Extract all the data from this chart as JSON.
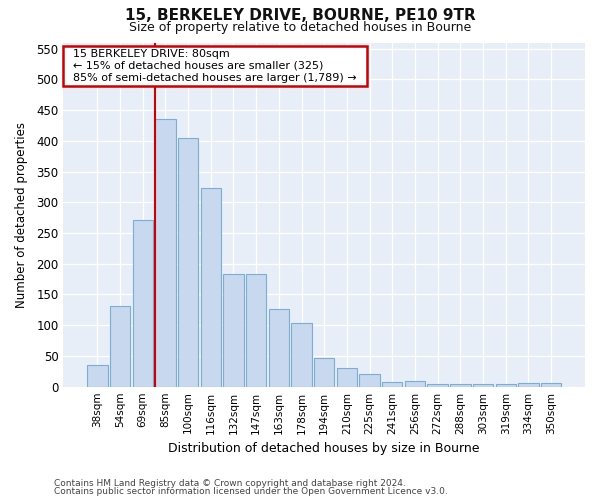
{
  "title1": "15, BERKELEY DRIVE, BOURNE, PE10 9TR",
  "title2": "Size of property relative to detached houses in Bourne",
  "xlabel": "Distribution of detached houses by size in Bourne",
  "ylabel": "Number of detached properties",
  "categories": [
    "38sqm",
    "54sqm",
    "69sqm",
    "85sqm",
    "100sqm",
    "116sqm",
    "132sqm",
    "147sqm",
    "163sqm",
    "178sqm",
    "194sqm",
    "210sqm",
    "225sqm",
    "241sqm",
    "256sqm",
    "272sqm",
    "288sqm",
    "303sqm",
    "319sqm",
    "334sqm",
    "350sqm"
  ],
  "values": [
    35,
    132,
    272,
    435,
    405,
    323,
    184,
    184,
    126,
    104,
    46,
    30,
    20,
    8,
    10,
    4,
    5,
    4,
    4,
    6,
    6
  ],
  "bar_color": "#c8d8ee",
  "bar_edge_color": "#7aaed4",
  "vline_index": 3,
  "vline_color": "#cc0000",
  "ylim": [
    0,
    560
  ],
  "yticks": [
    0,
    50,
    100,
    150,
    200,
    250,
    300,
    350,
    400,
    450,
    500,
    550
  ],
  "annotation_title": "15 BERKELEY DRIVE: 80sqm",
  "annotation_line1": "← 15% of detached houses are smaller (325)",
  "annotation_line2": "85% of semi-detached houses are larger (1,789) →",
  "annotation_box_edgecolor": "#cc0000",
  "footer1": "Contains HM Land Registry data © Crown copyright and database right 2024.",
  "footer2": "Contains public sector information licensed under the Open Government Licence v3.0.",
  "fig_bg": "#ffffff",
  "plot_bg": "#e8eef8"
}
